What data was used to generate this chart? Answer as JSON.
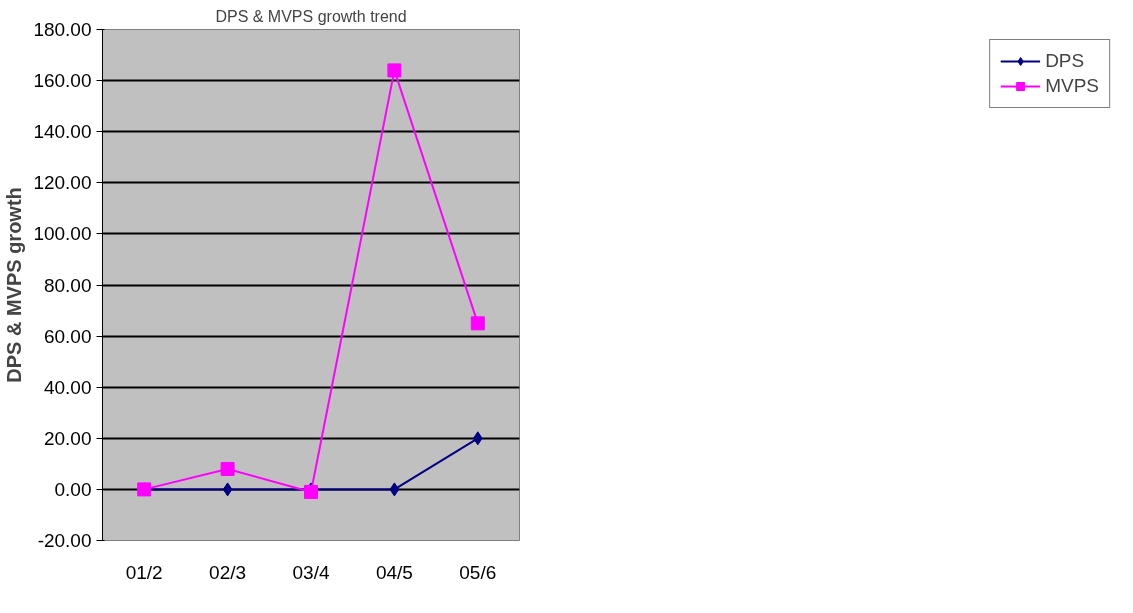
{
  "chart_data": {
    "type": "line",
    "title": "DPS & MVPS growth trend",
    "ylabel": "DPS & MVPS growth",
    "categories": [
      "01/2",
      "02/3",
      "03/4",
      "04/5",
      "05/6"
    ],
    "series": [
      {
        "name": "DPS",
        "color": "#000080",
        "marker": "diamond",
        "values": [
          0,
          0,
          0,
          0,
          20
        ]
      },
      {
        "name": "MVPS",
        "color": "#ff00ff",
        "marker": "square",
        "values": [
          0,
          8,
          -1,
          164,
          65
        ]
      }
    ],
    "ylim": [
      -20,
      180
    ],
    "yticks": [
      {
        "value": -20,
        "label": "-20.00"
      },
      {
        "value": 0,
        "label": "0.00"
      },
      {
        "value": 20,
        "label": "20.00"
      },
      {
        "value": 40,
        "label": "40.00"
      },
      {
        "value": 60,
        "label": "60.00"
      },
      {
        "value": 80,
        "label": "80.00"
      },
      {
        "value": 100,
        "label": "100.00"
      },
      {
        "value": 120,
        "label": "120.00"
      },
      {
        "value": 140,
        "label": "140.00"
      },
      {
        "value": 160,
        "label": "160.00"
      },
      {
        "value": 180,
        "label": "180.00"
      }
    ],
    "grid": "y",
    "legend": "right",
    "line_style": "solid"
  }
}
